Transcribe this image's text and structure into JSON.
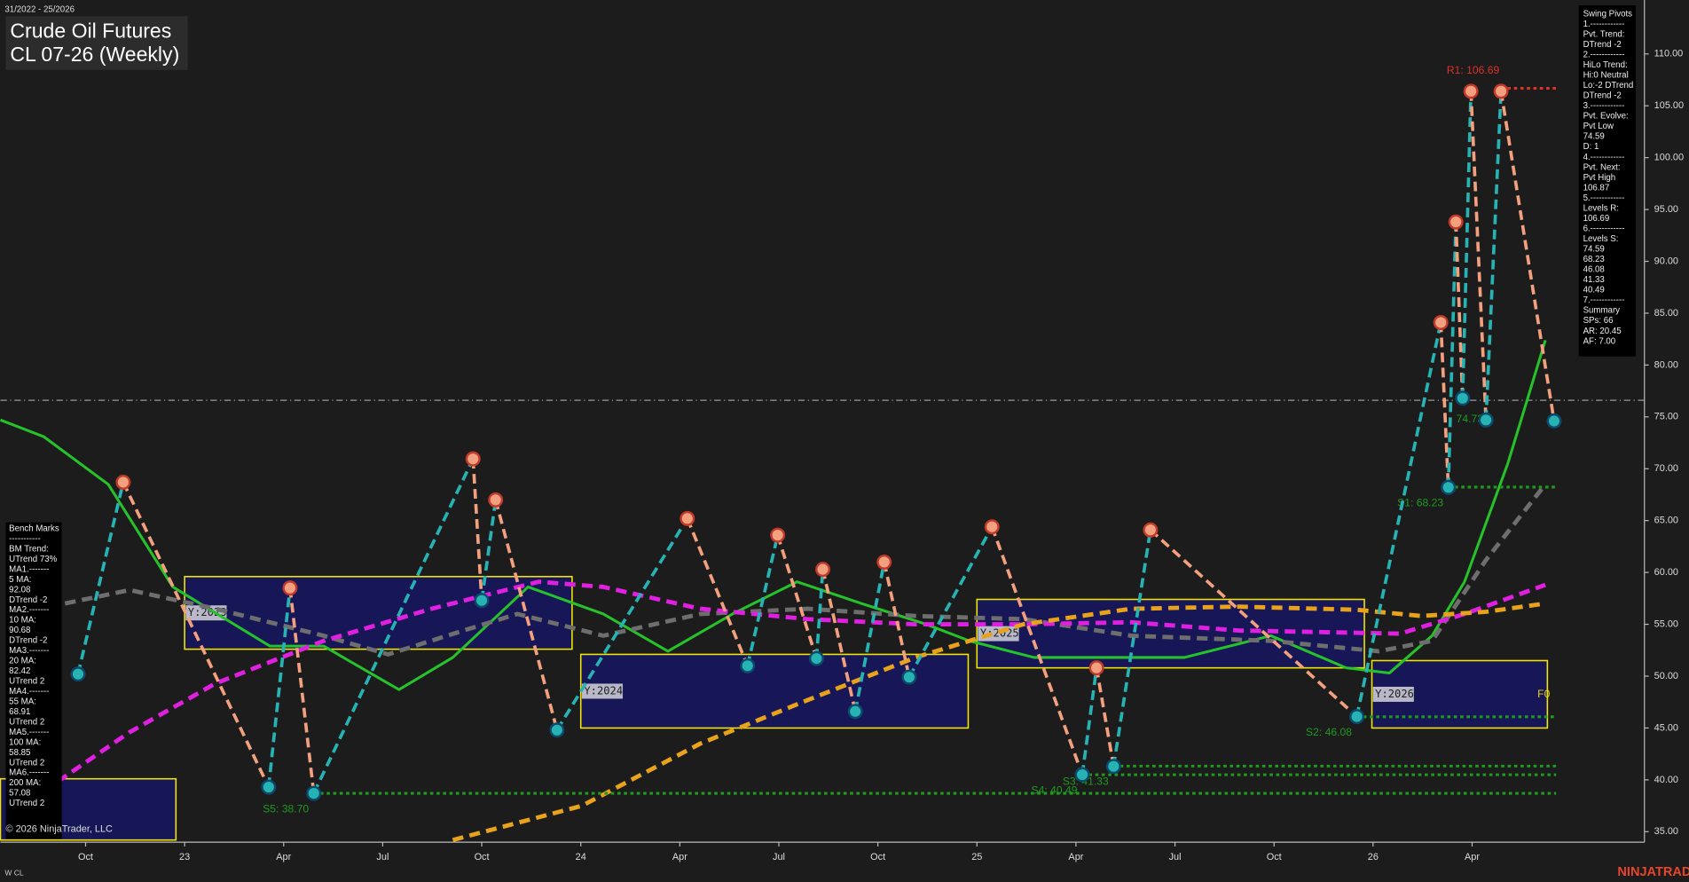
{
  "chart_data": {
    "type": "swing",
    "title": "Crude Oil Futures",
    "subtitle": "CL 07-26 (Weekly)",
    "date_range": "31/2022 - 25/2026",
    "copyright": "© 2026 NinjaTrader, LLC",
    "footer_left": "W CL",
    "brand": "NINJATRADER",
    "xlim": [
      2022.535,
      2026.685
    ],
    "ylim": [
      34.2,
      115.2
    ],
    "xticks": [
      {
        "value": 2022.75,
        "label": "Oct"
      },
      {
        "value": 2023,
        "label": "23"
      },
      {
        "value": 2023.25,
        "label": "Apr"
      },
      {
        "value": 2023.5,
        "label": "Jul"
      },
      {
        "value": 2023.75,
        "label": "Oct"
      },
      {
        "value": 2024,
        "label": "24"
      },
      {
        "value": 2024.25,
        "label": "Apr"
      },
      {
        "value": 2024.5,
        "label": "Jul"
      },
      {
        "value": 2024.75,
        "label": "Oct"
      },
      {
        "value": 2025,
        "label": "25"
      },
      {
        "value": 2025.25,
        "label": "Apr"
      },
      {
        "value": 2025.5,
        "label": "Jul"
      },
      {
        "value": 2025.75,
        "label": "Oct"
      },
      {
        "value": 2026,
        "label": "26"
      },
      {
        "value": 2026.25,
        "label": "Apr"
      }
    ],
    "yticks": [
      {
        "value": 35,
        "label": "35.00"
      },
      {
        "value": 40,
        "label": "40.00"
      },
      {
        "value": 45,
        "label": "45.00"
      },
      {
        "value": 50,
        "label": "50.00"
      },
      {
        "value": 55,
        "label": "55.00"
      },
      {
        "value": 60,
        "label": "60.00"
      },
      {
        "value": 65,
        "label": "65.00"
      },
      {
        "value": 70,
        "label": "70.00"
      },
      {
        "value": 75,
        "label": "75.00"
      },
      {
        "value": 80,
        "label": "80.00"
      },
      {
        "value": 85,
        "label": "85.00"
      },
      {
        "value": 90,
        "label": "90.00"
      },
      {
        "value": 95,
        "label": "95.00"
      },
      {
        "value": 100,
        "label": "100.00"
      },
      {
        "value": 105,
        "label": "105.00"
      },
      {
        "value": 110,
        "label": "110.00"
      }
    ],
    "reference_line": {
      "value": 76.6,
      "color": "#9a9a9a"
    },
    "pivots": {
      "up_color": "#27b3b3",
      "down_color": "#f2a07e",
      "x": [
        2022.731,
        2022.845,
        2023.212,
        2023.266,
        2023.326,
        2023.728,
        2023.75,
        2023.785,
        2023.94,
        2024.269,
        2024.421,
        2024.497,
        2024.595,
        2024.611,
        2024.693,
        2024.766,
        2024.829,
        2025.038,
        2025.266,
        2025.302,
        2025.345,
        2025.438,
        2025.959,
        2026.171,
        2026.19,
        2026.209,
        2026.226,
        2026.247,
        2026.285,
        2026.323,
        2026.457
      ],
      "values": [
        50.2,
        68.7,
        39.3,
        58.5,
        38.7,
        70.95,
        57.3,
        67.0,
        44.8,
        65.2,
        51.0,
        63.6,
        51.7,
        60.3,
        46.6,
        61.0,
        49.9,
        64.4,
        40.5,
        50.8,
        41.3,
        64.1,
        46.1,
        84.1,
        68.2,
        93.8,
        76.8,
        106.4,
        74.7,
        106.4,
        74.6
      ]
    },
    "series": [
      {
        "color": "#26c22a",
        "style": "solid",
        "x": [
          2022.535,
          2022.644,
          2022.807,
          2022.97,
          2023.215,
          2023.351,
          2023.541,
          2023.677,
          2023.867,
          2024.057,
          2024.22,
          2024.383,
          2024.546,
          2024.709,
          2024.872,
          2024.981,
          2025.144,
          2025.361,
          2025.524,
          2025.742,
          2025.932,
          2026.041,
          2026.149,
          2026.231,
          2026.34,
          2026.435
        ],
        "values": [
          74.7,
          73.1,
          68.5,
          58.6,
          52.9,
          52.9,
          48.7,
          51.8,
          58.6,
          56.0,
          52.4,
          56.0,
          59.1,
          57.0,
          55.0,
          53.4,
          51.8,
          51.8,
          51.8,
          53.9,
          50.8,
          50.3,
          53.9,
          59.1,
          70.5,
          82.4
        ]
      },
      {
        "color": "#6e6e6e",
        "style": "dashed",
        "x": [
          2022.698,
          2022.861,
          2023.078,
          2023.351,
          2023.514,
          2023.704,
          2023.84,
          2024.057,
          2024.302,
          2024.573,
          2024.845,
          2025.117,
          2025.389,
          2025.742,
          2026.014,
          2026.149,
          2026.285,
          2026.435
        ],
        "values": [
          57.0,
          58.3,
          56.5,
          53.9,
          52.1,
          54.4,
          56.0,
          53.9,
          56.0,
          56.5,
          55.8,
          55.5,
          53.9,
          53.4,
          52.4,
          53.4,
          61.2,
          68.5
        ]
      },
      {
        "color": "#e020e0",
        "style": "dashed",
        "x": [
          2022.644,
          2022.861,
          2023.078,
          2023.351,
          2023.623,
          2023.894,
          2024.057,
          2024.302,
          2024.573,
          2024.845,
          2025.117,
          2025.389,
          2025.661,
          2026.068,
          2026.231,
          2026.435
        ],
        "values": [
          38.9,
          44.6,
          49.3,
          53.4,
          56.5,
          59.1,
          58.6,
          56.5,
          55.5,
          55.0,
          55.0,
          55.2,
          54.4,
          54.1,
          56.0,
          58.8
        ]
      },
      {
        "color": "#e8a21c",
        "style": "dashed",
        "x": [
          2023.677,
          2024.003,
          2024.302,
          2024.573,
          2024.845,
          2025.117,
          2025.389,
          2025.661,
          2025.959,
          2026.122,
          2026.285,
          2026.435
        ],
        "values": [
          34.2,
          37.5,
          43.5,
          47.7,
          51.8,
          55.0,
          56.5,
          56.7,
          56.4,
          55.8,
          56.2,
          57.0
        ]
      }
    ],
    "boxes": [
      {
        "x": [
          2022.535,
          2022.978
        ],
        "values": [
          40.1,
          34.2
        ]
      },
      {
        "label": "Y:2023",
        "x": [
          2023.0,
          2023.978
        ],
        "values": [
          59.6,
          52.6
        ]
      },
      {
        "label": "Y:2024",
        "x": [
          2024.0,
          2024.978
        ],
        "values": [
          52.1,
          45.0
        ]
      },
      {
        "label": "Y:2025",
        "x": [
          2025.0,
          2025.978
        ],
        "values": [
          57.4,
          50.8
        ]
      },
      {
        "label": "Y:2026",
        "x": [
          2025.997,
          2026.44
        ],
        "values": [
          51.5,
          45.0
        ]
      }
    ],
    "levels": [
      {
        "label": "R1: 106.69",
        "value": 106.69,
        "x_start": 2026.323,
        "color": "#e0302a",
        "side": "R"
      },
      {
        "label": "S1: 68.23",
        "value": 68.23,
        "x_start": 2026.19,
        "color": "#1f9a1f",
        "side": "S"
      },
      {
        "label": "S2: 46.08",
        "value": 46.08,
        "x_start": 2025.959,
        "color": "#1f9a1f",
        "side": "S"
      },
      {
        "label": "S3: 41.33",
        "value": 41.33,
        "x_start": 2025.345,
        "color": "#1f9a1f",
        "side": "S"
      },
      {
        "label": "S4: 40.49",
        "value": 40.49,
        "x_start": 2025.266,
        "color": "#1f9a1f",
        "side": "S"
      },
      {
        "label": "S5: 38.70",
        "value": 38.7,
        "x_start": 2023.326,
        "color": "#1f9a1f",
        "side": "S"
      }
    ],
    "annotations": [
      {
        "text": "74.73",
        "value": 74.73,
        "x": 2026.21,
        "color": "#1f9a1f"
      },
      {
        "text": "F0",
        "value": 48.2,
        "x": 2026.415,
        "color": "#e8d21c"
      }
    ],
    "swing_pivots_panel": [
      "Swing Pivots",
      "1.------------",
      "Pvt. Trend:",
      "DTrend -2",
      "2.------------",
      "HiLo Trend:",
      "Hi:0 Neutral",
      "Lo:-2 DTrend",
      "DTrend -2",
      "3.------------",
      "Pvt. Evolve:",
      "Pvt Low",
      "74.59",
      "D: 1",
      "4.------------",
      "Pvt. Next:",
      "Pvt High",
      "106.87",
      "5.------------",
      "Levels R:",
      "106.69",
      "6.------------",
      "Levels S:",
      "74.59",
      "68.23",
      "46.08",
      "41.33",
      "40.49",
      "7.------------",
      "Summary",
      "SPs: 66",
      "AR: 20.45",
      "AF: 7.00"
    ],
    "bench_marks_panel": [
      "Bench Marks",
      "-----------",
      "BM Trend:",
      "UTrend 73%",
      "MA1.-------",
      "5 MA:",
      "92.08",
      "DTrend -2",
      "MA2.-------",
      "10 MA:",
      "90.68",
      "DTrend -2",
      "MA3.-------",
      "20 MA:",
      "82.42",
      "UTrend 2",
      "MA4.-------",
      "55 MA:",
      "68.91",
      "UTrend 2",
      "MA5.-------",
      "100 MA:",
      "58.85",
      "UTrend 2",
      "MA6.-------",
      "200 MA:",
      "57.08",
      "UTrend 2"
    ]
  }
}
